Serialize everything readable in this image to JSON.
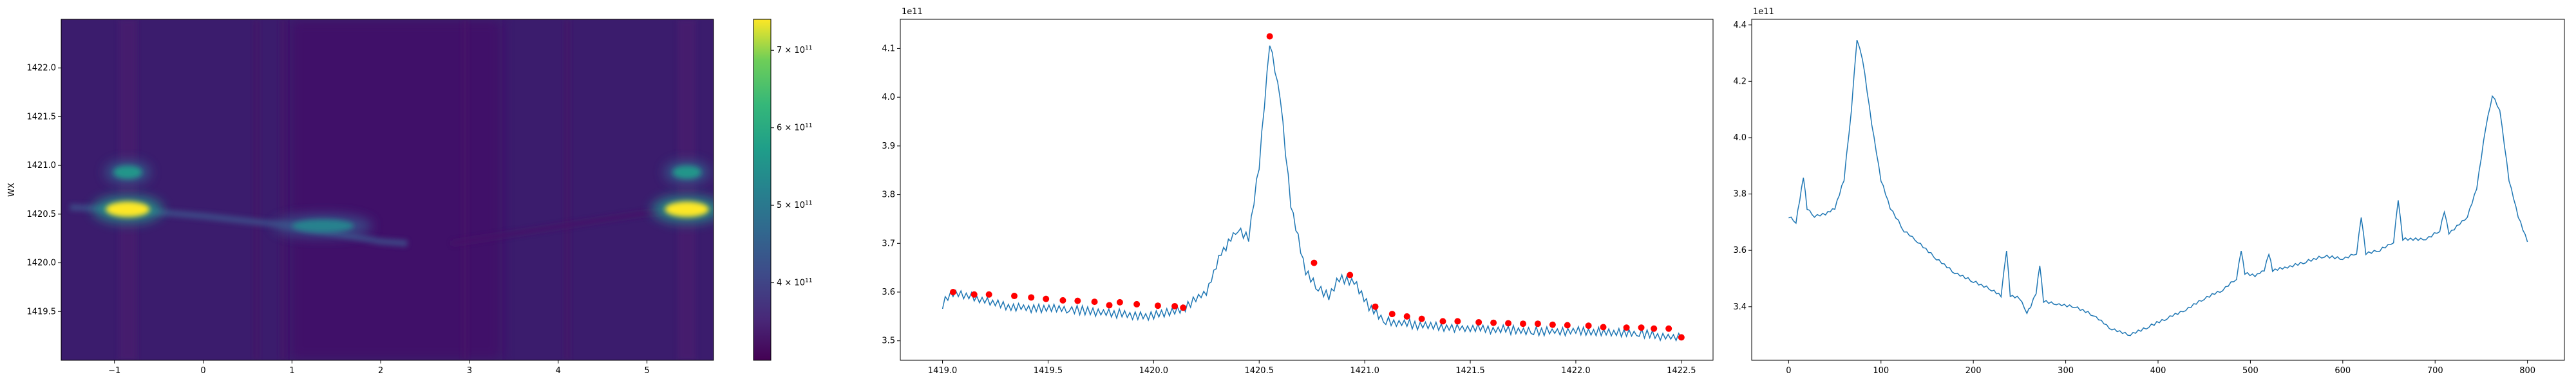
{
  "chart_data": [
    {
      "type": "heatmap",
      "title": "",
      "xlabel": "",
      "ylabel": "WX",
      "xlim": [
        -1.6,
        5.75
      ],
      "ylim": [
        1419.0,
        1422.5
      ],
      "x_ticks": [
        "−1",
        "0",
        "1",
        "2",
        "3",
        "4",
        "5"
      ],
      "x_tick_values": [
        -1,
        0,
        1,
        2,
        3,
        4,
        5
      ],
      "y_ticks": [
        "1419.5",
        "1420.0",
        "1420.5",
        "1421.0",
        "1421.5",
        "1422.0"
      ],
      "y_tick_values": [
        1419.5,
        1420.0,
        1420.5,
        1421.0,
        1421.5,
        1422.0
      ],
      "colormap": "viridis",
      "colorbar": {
        "range": [
          300000000000.0,
          740000000000.0
        ],
        "ticks": [
          "4 × 10",
          "5 × 10",
          "6 × 10",
          "7 × 10"
        ],
        "tick_values": [
          400000000000.0,
          500000000000.0,
          600000000000.0,
          700000000000.0
        ],
        "tick_exponent": "11"
      },
      "features": [
        {
          "kind": "vertical-band",
          "x": -0.85,
          "y_range": [
            1419.0,
            1422.5
          ],
          "value": 340000000000.0
        },
        {
          "kind": "vertical-band",
          "x": 5.45,
          "y_range": [
            1419.0,
            1422.5
          ],
          "value": 340000000000.0
        },
        {
          "kind": "vertical-band",
          "x": 0.6,
          "y_range": [
            1419.0,
            1422.5
          ],
          "value": 330000000000.0
        },
        {
          "kind": "vertical-band",
          "x": 0.9,
          "y_range": [
            1419.0,
            1422.5
          ],
          "value": 330000000000.0
        },
        {
          "kind": "vertical-band",
          "x": 2.95,
          "y_range": [
            1419.0,
            1422.5
          ],
          "value": 330000000000.0
        },
        {
          "kind": "vertical-band",
          "x": 4.1,
          "y_range": [
            1419.0,
            1422.5
          ],
          "value": 330000000000.0
        },
        {
          "kind": "hotspot",
          "x": -0.85,
          "y": 1420.55,
          "value": 740000000000.0
        },
        {
          "kind": "hotspot",
          "x": -0.85,
          "y": 1420.93,
          "value": 560000000000.0
        },
        {
          "kind": "hotspot",
          "x": 5.45,
          "y": 1420.55,
          "value": 740000000000.0
        },
        {
          "kind": "hotspot",
          "x": 5.45,
          "y": 1420.93,
          "value": 560000000000.0
        },
        {
          "kind": "hotspot",
          "x": 1.35,
          "y": 1420.38,
          "value": 520000000000.0
        }
      ],
      "ridge": {
        "x": [
          -1.5,
          -1.0,
          -0.5,
          0.0,
          0.5,
          1.0,
          1.5,
          2.0,
          2.3
        ],
        "y": [
          1420.57,
          1420.55,
          1420.52,
          1420.48,
          1420.43,
          1420.38,
          1420.3,
          1420.22,
          1420.2
        ],
        "value": 420000000000.0
      },
      "faint_ridge": {
        "x": [
          2.8,
          3.5,
          4.2,
          4.9,
          5.5
        ],
        "y": [
          1420.2,
          1420.3,
          1420.4,
          1420.5,
          1420.55
        ],
        "value": 330000000000.0
      }
    },
    {
      "type": "line",
      "title": "",
      "xlabel": "",
      "ylabel": "",
      "xlim": [
        1418.8,
        1422.65
      ],
      "ylim": [
        346000000000.0,
        416000000000.0
      ],
      "x_ticks": [
        "1419.0",
        "1419.5",
        "1420.0",
        "1420.5",
        "1421.0",
        "1421.5",
        "1422.0",
        "1422.5"
      ],
      "x_tick_values": [
        1419.0,
        1419.5,
        1420.0,
        1420.5,
        1421.0,
        1421.5,
        1422.0,
        1422.5
      ],
      "y_ticks": [
        "3.5",
        "3.6",
        "3.7",
        "3.8",
        "3.9",
        "4.0",
        "4.1"
      ],
      "y_tick_values": [
        350000000000.0,
        360000000000.0,
        370000000000.0,
        380000000000.0,
        390000000000.0,
        400000000000.0,
        410000000000.0
      ],
      "y_offset_label": "1e11",
      "line_color": "#1f77b4",
      "marker_color": "#ff0000",
      "anchors": [
        [
          1419.0,
          3.575
        ],
        [
          1419.05,
          3.6
        ],
        [
          1419.3,
          3.57
        ],
        [
          1419.6,
          3.565
        ],
        [
          1419.85,
          3.555
        ],
        [
          1420.0,
          3.55
        ],
        [
          1420.15,
          3.57
        ],
        [
          1420.25,
          3.6
        ],
        [
          1420.32,
          3.68
        ],
        [
          1420.4,
          3.73
        ],
        [
          1420.45,
          3.71
        ],
        [
          1420.5,
          3.86
        ],
        [
          1420.55,
          4.11
        ],
        [
          1420.6,
          4.0
        ],
        [
          1420.65,
          3.78
        ],
        [
          1420.72,
          3.64
        ],
        [
          1420.78,
          3.61
        ],
        [
          1420.83,
          3.59
        ],
        [
          1420.88,
          3.63
        ],
        [
          1420.95,
          3.62
        ],
        [
          1421.02,
          3.57
        ],
        [
          1421.1,
          3.54
        ],
        [
          1421.3,
          3.53
        ],
        [
          1421.5,
          3.525
        ],
        [
          1421.8,
          3.52
        ],
        [
          1422.0,
          3.52
        ],
        [
          1422.3,
          3.515
        ],
        [
          1422.5,
          3.505
        ]
      ],
      "peaks": [
        [
          1419.05,
          3.6
        ],
        [
          1419.15,
          3.595
        ],
        [
          1419.22,
          3.595
        ],
        [
          1419.34,
          3.592
        ],
        [
          1419.42,
          3.589
        ],
        [
          1419.49,
          3.586
        ],
        [
          1419.57,
          3.583
        ],
        [
          1419.64,
          3.582
        ],
        [
          1419.72,
          3.58
        ],
        [
          1419.79,
          3.573
        ],
        [
          1419.84,
          3.579
        ],
        [
          1419.92,
          3.575
        ],
        [
          1420.02,
          3.572
        ],
        [
          1420.1,
          3.571
        ],
        [
          1420.14,
          3.568
        ],
        [
          1420.55,
          4.125
        ],
        [
          1420.76,
          3.66
        ],
        [
          1420.93,
          3.635
        ],
        [
          1421.05,
          3.57
        ],
        [
          1421.13,
          3.555
        ],
        [
          1421.2,
          3.55
        ],
        [
          1421.27,
          3.545
        ],
        [
          1421.37,
          3.54
        ],
        [
          1421.44,
          3.54
        ],
        [
          1421.54,
          3.538
        ],
        [
          1421.61,
          3.537
        ],
        [
          1421.68,
          3.536
        ],
        [
          1421.75,
          3.535
        ],
        [
          1421.82,
          3.535
        ],
        [
          1421.89,
          3.533
        ],
        [
          1421.96,
          3.532
        ],
        [
          1422.06,
          3.531
        ],
        [
          1422.13,
          3.528
        ],
        [
          1422.24,
          3.527
        ],
        [
          1422.31,
          3.527
        ],
        [
          1422.37,
          3.525
        ],
        [
          1422.44,
          3.525
        ],
        [
          1422.5,
          3.507
        ]
      ],
      "y_scale": 100000000000.0
    },
    {
      "type": "line",
      "title": "",
      "xlabel": "",
      "ylabel": "",
      "xlim": [
        -40,
        840
      ],
      "ylim": [
        321000000000.0,
        442000000000.0
      ],
      "x_ticks": [
        "0",
        "100",
        "200",
        "300",
        "400",
        "500",
        "600",
        "700",
        "800"
      ],
      "x_tick_values": [
        0,
        100,
        200,
        300,
        400,
        500,
        600,
        700,
        800
      ],
      "y_ticks": [
        "3.4",
        "3.6",
        "3.8",
        "4.0",
        "4.2",
        "4.4"
      ],
      "y_tick_values": [
        340000000000.0,
        360000000000.0,
        380000000000.0,
        400000000000.0,
        420000000000.0,
        440000000000.0
      ],
      "y_offset_label": "1e11",
      "line_color": "#1f77b4",
      "anchors": [
        [
          0,
          3.72
        ],
        [
          8,
          3.7
        ],
        [
          12,
          3.78
        ],
        [
          16,
          3.86
        ],
        [
          20,
          3.75
        ],
        [
          28,
          3.72
        ],
        [
          40,
          3.73
        ],
        [
          50,
          3.75
        ],
        [
          60,
          3.85
        ],
        [
          68,
          4.1
        ],
        [
          74,
          4.35
        ],
        [
          80,
          4.28
        ],
        [
          90,
          4.05
        ],
        [
          100,
          3.85
        ],
        [
          110,
          3.75
        ],
        [
          125,
          3.67
        ],
        [
          140,
          3.63
        ],
        [
          160,
          3.57
        ],
        [
          180,
          3.52
        ],
        [
          200,
          3.49
        ],
        [
          220,
          3.46
        ],
        [
          230,
          3.44
        ],
        [
          236,
          3.6
        ],
        [
          240,
          3.44
        ],
        [
          250,
          3.43
        ],
        [
          258,
          3.38
        ],
        [
          262,
          3.4
        ],
        [
          268,
          3.45
        ],
        [
          272,
          3.55
        ],
        [
          276,
          3.42
        ],
        [
          290,
          3.41
        ],
        [
          310,
          3.4
        ],
        [
          330,
          3.37
        ],
        [
          350,
          3.32
        ],
        [
          370,
          3.3
        ],
        [
          390,
          3.33
        ],
        [
          410,
          3.36
        ],
        [
          430,
          3.39
        ],
        [
          450,
          3.43
        ],
        [
          470,
          3.46
        ],
        [
          485,
          3.5
        ],
        [
          490,
          3.6
        ],
        [
          494,
          3.52
        ],
        [
          505,
          3.51
        ],
        [
          515,
          3.53
        ],
        [
          520,
          3.59
        ],
        [
          524,
          3.53
        ],
        [
          540,
          3.54
        ],
        [
          560,
          3.56
        ],
        [
          580,
          3.58
        ],
        [
          600,
          3.57
        ],
        [
          615,
          3.59
        ],
        [
          620,
          3.72
        ],
        [
          625,
          3.59
        ],
        [
          640,
          3.6
        ],
        [
          655,
          3.63
        ],
        [
          660,
          3.78
        ],
        [
          665,
          3.64
        ],
        [
          690,
          3.64
        ],
        [
          705,
          3.67
        ],
        [
          710,
          3.74
        ],
        [
          715,
          3.66
        ],
        [
          735,
          3.72
        ],
        [
          745,
          3.82
        ],
        [
          755,
          4.04
        ],
        [
          762,
          4.15
        ],
        [
          770,
          4.1
        ],
        [
          780,
          3.85
        ],
        [
          790,
          3.72
        ],
        [
          800,
          3.63
        ]
      ],
      "y_scale": 100000000000.0
    }
  ]
}
